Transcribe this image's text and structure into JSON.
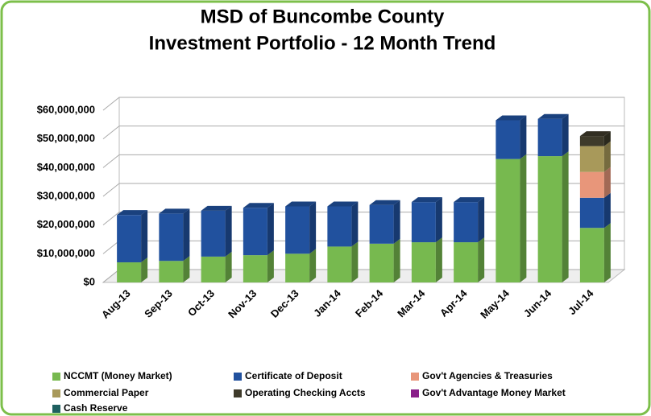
{
  "chart_data": {
    "type": "bar",
    "stacked": true,
    "title": "MSD of Buncombe County",
    "subtitle": "Investment Portfolio - 12 Month Trend",
    "categories": [
      "Aug-13",
      "Sep-13",
      "Oct-13",
      "Nov-13",
      "Dec-13",
      "Jan-14",
      "Feb-14",
      "Mar-14",
      "Apr-14",
      "May-14",
      "Jun-14",
      "Jul-14"
    ],
    "series": [
      {
        "name": "NCCMT (Money Market)",
        "color": "#77b94f",
        "values": [
          7000000,
          7500000,
          9000000,
          9500000,
          10000000,
          12500000,
          13500000,
          14000000,
          14000000,
          43000000,
          44000000,
          19000000
        ]
      },
      {
        "name": "Certificate of Deposit",
        "color": "#21519e",
        "values": [
          16500000,
          16500000,
          16000000,
          16500000,
          16500000,
          14000000,
          13500000,
          14000000,
          14000000,
          13500000,
          13000000,
          10500000
        ]
      },
      {
        "name": "Gov't Agencies & Treasuries",
        "color": "#e8967a",
        "values": [
          0,
          0,
          0,
          0,
          0,
          0,
          0,
          0,
          0,
          0,
          0,
          9000000
        ]
      },
      {
        "name": "Commercial Paper",
        "color": "#a8995a",
        "values": [
          0,
          0,
          0,
          0,
          0,
          0,
          0,
          0,
          0,
          0,
          0,
          9000000
        ]
      },
      {
        "name": "Operating Checking Accts",
        "color": "#3e3a2a",
        "values": [
          0,
          0,
          0,
          0,
          0,
          0,
          0,
          0,
          0,
          0,
          0,
          3500000
        ]
      },
      {
        "name": "Gov't Advantage Money Market",
        "color": "#8a1f8a",
        "values": [
          0,
          0,
          0,
          0,
          0,
          0,
          0,
          0,
          0,
          0,
          0,
          0
        ]
      },
      {
        "name": "Cash  Reserve",
        "color": "#1e6060",
        "values": [
          0,
          0,
          0,
          0,
          0,
          0,
          0,
          0,
          0,
          0,
          0,
          0
        ]
      }
    ],
    "ylim": [
      0,
      60000000
    ],
    "yticks": [
      {
        "value": 0,
        "label": "$0"
      },
      {
        "value": 10000000,
        "label": "$10,000,000"
      },
      {
        "value": 20000000,
        "label": "$20,000,000"
      },
      {
        "value": 30000000,
        "label": "$30,000,000"
      },
      {
        "value": 40000000,
        "label": "$40,000,000"
      },
      {
        "value": 50000000,
        "label": "$50,000,000"
      },
      {
        "value": 60000000,
        "label": "$60,000,000"
      }
    ],
    "grid": true,
    "legend": "bottom"
  }
}
